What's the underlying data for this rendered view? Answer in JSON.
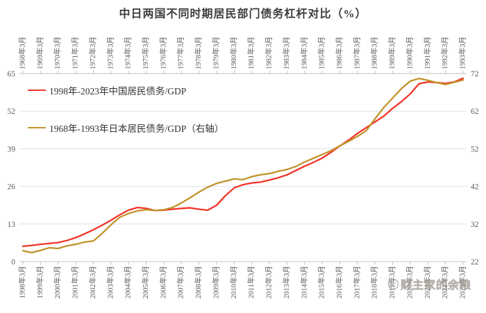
{
  "title": "中日两国不同时期居民部门债务杠杆对比（%）",
  "watermark": {
    "text": "财主家的余粮",
    "icon": "smiley-face-icon"
  },
  "legend": [
    {
      "label": "1998年-2023年中国居民债务/GDP",
      "color": "#f43329"
    },
    {
      "label": "1968年-1993年日本居民债务/GDP（右轴）",
      "color": "#c1932b"
    }
  ],
  "colors": {
    "china_line": "#f43329",
    "japan_line": "#c1932b",
    "grid": "#e0e0e0",
    "axis": "#c2c2c2",
    "tick_label": "#595959",
    "title": "#3d3d3d"
  },
  "chart_data": {
    "type": "line",
    "title": "中日两国不同时期居民部门债务杠杆对比（%）",
    "grid": true,
    "legend_position": "top-left",
    "x_axis_bottom": {
      "labels": [
        "1998年3月",
        "1999年3月",
        "2000年3月",
        "2001年3月",
        "2002年3月",
        "2003年3月",
        "2004年3月",
        "2005年3月",
        "2006年3月",
        "2007年3月",
        "2008年3月",
        "2009年3月",
        "2010年3月",
        "2011年3月",
        "2012年3月",
        "2013年3月",
        "2014年3月",
        "2015年3月",
        "2016年3月",
        "2017年3月",
        "2018年3月",
        "2019年3月",
        "2020年3月",
        "2021年3月",
        "2022年3月",
        "2023年3月"
      ]
    },
    "x_axis_top": {
      "labels": [
        "1968年3月",
        "1969年3月",
        "1970年3月",
        "1971年3月",
        "1972年3月",
        "1973年3月",
        "1974年3月",
        "1975年3月",
        "1976年3月",
        "1977年3月",
        "1978年3月",
        "1979年3月",
        "1980年3月",
        "1981年3月",
        "1982年3月",
        "1983年3月",
        "1984年3月",
        "1985年3月",
        "1986年3月",
        "1987年3月",
        "1988年3月",
        "1989年3月",
        "1990年3月",
        "1991年3月",
        "1992年3月",
        "1993年3月"
      ]
    },
    "y_axis_left": {
      "ticks": [
        0,
        13,
        26,
        39,
        52,
        65
      ],
      "range": [
        0,
        65
      ]
    },
    "y_axis_right": {
      "ticks": [
        22,
        32,
        42,
        52,
        62,
        72
      ],
      "range": [
        22,
        72
      ]
    },
    "x_index_step": 0.5,
    "series": [
      {
        "name": "1998年-2023年中国居民债务/GDP",
        "axis": "left",
        "color": "#f43329",
        "values": [
          5.3,
          5.6,
          6.0,
          6.3,
          6.6,
          7.3,
          8.3,
          9.6,
          11.0,
          12.6,
          14.3,
          16.2,
          17.8,
          18.7,
          18.4,
          17.7,
          17.8,
          18.1,
          18.4,
          18.6,
          18.1,
          17.8,
          19.5,
          22.8,
          25.5,
          26.6,
          27.2,
          27.5,
          28.2,
          29.0,
          30.0,
          31.5,
          33.0,
          34.3,
          35.8,
          37.8,
          40.0,
          42.0,
          44.3,
          46.3,
          48.3,
          50.3,
          53.0,
          55.3,
          58.0,
          61.5,
          62.1,
          61.9,
          61.6,
          62.1,
          63.4
        ]
      },
      {
        "name": "1968年-1993年日本居民债务/GDP（右轴）",
        "axis": "right",
        "color": "#c1932b",
        "values": [
          24.9,
          24.4,
          25.0,
          25.7,
          25.5,
          26.2,
          26.6,
          27.2,
          27.5,
          29.5,
          31.8,
          33.8,
          34.8,
          35.5,
          35.8,
          35.6,
          35.8,
          36.4,
          37.6,
          39.0,
          40.5,
          41.8,
          42.8,
          43.4,
          44.0,
          43.8,
          44.6,
          45.1,
          45.4,
          46.0,
          46.5,
          47.3,
          48.5,
          49.5,
          50.5,
          51.5,
          52.8,
          54.0,
          55.3,
          56.8,
          60.0,
          63.0,
          65.5,
          68.0,
          70.0,
          70.7,
          70.2,
          69.6,
          69.1,
          69.7,
          70.3
        ]
      }
    ]
  }
}
